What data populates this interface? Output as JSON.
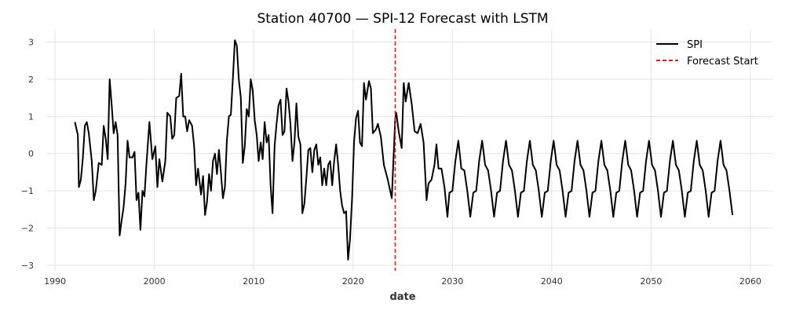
{
  "chart_data": {
    "type": "line",
    "title": "Station 40700 — SPI-12 Forecast with LSTM",
    "xlabel": "date",
    "ylabel": "",
    "xlim": [
      1989.2,
      2062.3
    ],
    "ylim": [
      -3.15,
      3.35
    ],
    "x_ticks": [
      1990,
      2000,
      2010,
      2020,
      2030,
      2040,
      2050,
      2060
    ],
    "y_ticks": [
      -3,
      -2,
      -1,
      0,
      1,
      2,
      3
    ],
    "grid": true,
    "legend": {
      "position": "top-right",
      "entries": [
        {
          "label": "SPI",
          "style": "solid",
          "color": "#000000"
        },
        {
          "label": "Forecast Start",
          "style": "dashed",
          "color": "#e31a1c"
        }
      ]
    },
    "forecast_start_x": 2024.25,
    "series": [
      {
        "name": "SPI",
        "color": "#000000",
        "points": [
          [
            1992.0,
            0.85
          ],
          [
            1992.3,
            0.5
          ],
          [
            1992.4,
            -0.9
          ],
          [
            1992.6,
            -0.7
          ],
          [
            1992.8,
            -0.1
          ],
          [
            1993.0,
            0.75
          ],
          [
            1993.2,
            0.85
          ],
          [
            1993.4,
            0.55
          ],
          [
            1993.7,
            -0.2
          ],
          [
            1993.9,
            -1.25
          ],
          [
            1994.1,
            -1.0
          ],
          [
            1994.4,
            -0.25
          ],
          [
            1994.7,
            -0.3
          ],
          [
            1994.9,
            0.75
          ],
          [
            1995.1,
            0.4
          ],
          [
            1995.3,
            -0.15
          ],
          [
            1995.5,
            2.0
          ],
          [
            1995.7,
            1.3
          ],
          [
            1995.9,
            0.55
          ],
          [
            1996.1,
            0.85
          ],
          [
            1996.3,
            0.5
          ],
          [
            1996.5,
            -2.2
          ],
          [
            1996.7,
            -1.8
          ],
          [
            1996.9,
            -1.45
          ],
          [
            1997.1,
            -0.8
          ],
          [
            1997.3,
            0.35
          ],
          [
            1997.5,
            -0.1
          ],
          [
            1997.8,
            -0.1
          ],
          [
            1998.0,
            0.05
          ],
          [
            1998.2,
            -1.25
          ],
          [
            1998.4,
            -1.05
          ],
          [
            1998.6,
            -2.05
          ],
          [
            1998.8,
            -1.0
          ],
          [
            1999.0,
            -1.15
          ],
          [
            1999.2,
            -0.3
          ],
          [
            1999.5,
            0.85
          ],
          [
            1999.8,
            -0.15
          ],
          [
            2000.1,
            0.2
          ],
          [
            2000.3,
            -0.9
          ],
          [
            2000.5,
            -0.15
          ],
          [
            2000.8,
            -0.75
          ],
          [
            2001.1,
            -0.2
          ],
          [
            2001.3,
            1.1
          ],
          [
            2001.6,
            1.0
          ],
          [
            2001.8,
            0.4
          ],
          [
            2002.0,
            0.5
          ],
          [
            2002.2,
            1.5
          ],
          [
            2002.5,
            1.55
          ],
          [
            2002.7,
            2.15
          ],
          [
            2002.9,
            1.0
          ],
          [
            2003.1,
            1.0
          ],
          [
            2003.3,
            0.6
          ],
          [
            2003.5,
            0.9
          ],
          [
            2003.8,
            0.75
          ],
          [
            2004.0,
            0.2
          ],
          [
            2004.2,
            -0.85
          ],
          [
            2004.4,
            -0.4
          ],
          [
            2004.7,
            -1.1
          ],
          [
            2004.9,
            -0.6
          ],
          [
            2005.1,
            -1.65
          ],
          [
            2005.3,
            -1.3
          ],
          [
            2005.5,
            -0.55
          ],
          [
            2005.7,
            -1.0
          ],
          [
            2005.9,
            -0.2
          ],
          [
            2006.1,
            0.0
          ],
          [
            2006.3,
            -0.55
          ],
          [
            2006.5,
            0.1
          ],
          [
            2006.7,
            -0.5
          ],
          [
            2006.9,
            -1.2
          ],
          [
            2007.1,
            -0.9
          ],
          [
            2007.3,
            0.35
          ],
          [
            2007.5,
            1.0
          ],
          [
            2007.7,
            1.05
          ],
          [
            2007.9,
            2.0
          ],
          [
            2008.1,
            3.05
          ],
          [
            2008.3,
            2.9
          ],
          [
            2008.5,
            2.0
          ],
          [
            2008.7,
            1.5
          ],
          [
            2008.9,
            -0.25
          ],
          [
            2009.1,
            0.2
          ],
          [
            2009.3,
            1.2
          ],
          [
            2009.5,
            1.0
          ],
          [
            2009.7,
            2.0
          ],
          [
            2009.9,
            1.7
          ],
          [
            2010.1,
            0.9
          ],
          [
            2010.3,
            0.5
          ],
          [
            2010.5,
            -0.2
          ],
          [
            2010.7,
            0.3
          ],
          [
            2010.9,
            -0.15
          ],
          [
            2011.1,
            0.85
          ],
          [
            2011.3,
            0.3
          ],
          [
            2011.5,
            0.5
          ],
          [
            2011.7,
            -0.85
          ],
          [
            2011.9,
            -1.6
          ],
          [
            2012.1,
            0.2
          ],
          [
            2012.3,
            0.8
          ],
          [
            2012.5,
            1.3
          ],
          [
            2012.7,
            1.45
          ],
          [
            2012.9,
            0.5
          ],
          [
            2013.1,
            0.6
          ],
          [
            2013.3,
            1.75
          ],
          [
            2013.5,
            1.4
          ],
          [
            2013.7,
            0.8
          ],
          [
            2013.9,
            -0.2
          ],
          [
            2014.1,
            0.3
          ],
          [
            2014.3,
            1.35
          ],
          [
            2014.5,
            0.45
          ],
          [
            2014.7,
            0.25
          ],
          [
            2014.9,
            -1.6
          ],
          [
            2015.1,
            -1.35
          ],
          [
            2015.3,
            -0.65
          ],
          [
            2015.5,
            0.1
          ],
          [
            2015.7,
            0.15
          ],
          [
            2015.9,
            -0.5
          ],
          [
            2016.1,
            0.1
          ],
          [
            2016.3,
            0.25
          ],
          [
            2016.5,
            -0.3
          ],
          [
            2016.7,
            -0.1
          ],
          [
            2016.9,
            -0.85
          ],
          [
            2017.1,
            -0.4
          ],
          [
            2017.3,
            -0.85
          ],
          [
            2017.5,
            -0.3
          ],
          [
            2017.7,
            -0.2
          ],
          [
            2017.9,
            -0.85
          ],
          [
            2018.1,
            -0.2
          ],
          [
            2018.3,
            0.25
          ],
          [
            2018.5,
            -0.3
          ],
          [
            2018.7,
            -1.0
          ],
          [
            2018.9,
            -1.4
          ],
          [
            2019.1,
            -1.6
          ],
          [
            2019.3,
            -1.55
          ],
          [
            2019.5,
            -2.85
          ],
          [
            2019.7,
            -2.3
          ],
          [
            2019.9,
            -1.2
          ],
          [
            2020.1,
            0.3
          ],
          [
            2020.3,
            0.95
          ],
          [
            2020.5,
            1.15
          ],
          [
            2020.7,
            0.3
          ],
          [
            2020.9,
            0.2
          ],
          [
            2021.1,
            1.9
          ],
          [
            2021.3,
            1.45
          ],
          [
            2021.6,
            1.95
          ],
          [
            2021.8,
            1.75
          ],
          [
            2022.0,
            0.55
          ],
          [
            2022.3,
            0.65
          ],
          [
            2022.5,
            0.8
          ],
          [
            2022.8,
            0.45
          ],
          [
            2023.1,
            -0.3
          ],
          [
            2023.5,
            -0.7
          ],
          [
            2023.9,
            -1.2
          ],
          [
            2024.25,
            0.95
          ],
          [
            2024.35,
            1.1
          ],
          [
            2024.6,
            0.6
          ],
          [
            2024.9,
            0.15
          ],
          [
            2025.1,
            1.9
          ],
          [
            2025.3,
            1.4
          ],
          [
            2025.6,
            1.9
          ],
          [
            2025.9,
            1.35
          ],
          [
            2026.2,
            0.6
          ],
          [
            2026.5,
            0.55
          ],
          [
            2026.8,
            0.8
          ],
          [
            2027.1,
            0.3
          ],
          [
            2027.4,
            -1.25
          ],
          [
            2027.6,
            -0.8
          ],
          [
            2027.9,
            -0.7
          ],
          [
            2028.2,
            -0.3
          ],
          [
            2028.4,
            0.25
          ],
          [
            2028.6,
            -0.4
          ],
          [
            2028.9,
            -0.4
          ],
          [
            2029.2,
            -0.9
          ],
          [
            2029.5,
            -1.7
          ],
          [
            2029.7,
            -1.05
          ],
          [
            2030.0,
            -1.0
          ],
          [
            2030.3,
            -0.2
          ],
          [
            2030.6,
            0.35
          ],
          [
            2030.9,
            -0.4
          ],
          [
            2031.2,
            -0.45
          ],
          [
            2031.5,
            -1.0
          ],
          [
            2031.8,
            -1.7
          ],
          [
            2032.1,
            -1.05
          ],
          [
            2032.4,
            -1.0
          ],
          [
            2032.7,
            -0.2
          ],
          [
            2033.0,
            0.35
          ],
          [
            2033.3,
            -0.3
          ],
          [
            2033.6,
            -0.45
          ],
          [
            2033.9,
            -1.0
          ],
          [
            2034.2,
            -1.7
          ],
          [
            2034.5,
            -1.05
          ],
          [
            2034.8,
            -1.0
          ],
          [
            2035.1,
            -0.2
          ],
          [
            2035.4,
            0.35
          ],
          [
            2035.7,
            -0.3
          ],
          [
            2036.0,
            -0.45
          ],
          [
            2036.3,
            -1.0
          ],
          [
            2036.6,
            -1.7
          ],
          [
            2036.9,
            -1.05
          ],
          [
            2037.2,
            -1.0
          ],
          [
            2037.5,
            -0.2
          ],
          [
            2037.8,
            0.35
          ],
          [
            2038.1,
            -0.3
          ],
          [
            2038.4,
            -0.45
          ],
          [
            2038.7,
            -1.0
          ],
          [
            2039.0,
            -1.7
          ],
          [
            2039.3,
            -1.05
          ],
          [
            2039.6,
            -1.0
          ],
          [
            2039.9,
            -0.2
          ],
          [
            2040.2,
            0.35
          ],
          [
            2040.5,
            -0.3
          ],
          [
            2040.8,
            -0.45
          ],
          [
            2041.1,
            -1.0
          ],
          [
            2041.4,
            -1.7
          ],
          [
            2041.7,
            -1.05
          ],
          [
            2042.0,
            -1.0
          ],
          [
            2042.3,
            -0.2
          ],
          [
            2042.6,
            0.35
          ],
          [
            2042.9,
            -0.3
          ],
          [
            2043.2,
            -0.45
          ],
          [
            2043.5,
            -1.0
          ],
          [
            2043.8,
            -1.7
          ],
          [
            2044.1,
            -1.05
          ],
          [
            2044.4,
            -1.0
          ],
          [
            2044.7,
            -0.2
          ],
          [
            2045.0,
            0.35
          ],
          [
            2045.3,
            -0.3
          ],
          [
            2045.6,
            -0.45
          ],
          [
            2045.9,
            -1.0
          ],
          [
            2046.2,
            -1.7
          ],
          [
            2046.5,
            -1.05
          ],
          [
            2046.8,
            -1.0
          ],
          [
            2047.1,
            -0.2
          ],
          [
            2047.4,
            0.35
          ],
          [
            2047.7,
            -0.3
          ],
          [
            2048.0,
            -0.45
          ],
          [
            2048.3,
            -1.0
          ],
          [
            2048.6,
            -1.7
          ],
          [
            2048.9,
            -1.05
          ],
          [
            2049.2,
            -1.0
          ],
          [
            2049.5,
            -0.2
          ],
          [
            2049.8,
            0.35
          ],
          [
            2050.1,
            -0.3
          ],
          [
            2050.4,
            -0.45
          ],
          [
            2050.7,
            -1.0
          ],
          [
            2051.0,
            -1.7
          ],
          [
            2051.3,
            -1.05
          ],
          [
            2051.6,
            -1.0
          ],
          [
            2051.9,
            -0.2
          ],
          [
            2052.2,
            0.35
          ],
          [
            2052.5,
            -0.3
          ],
          [
            2052.8,
            -0.45
          ],
          [
            2053.1,
            -1.0
          ],
          [
            2053.4,
            -1.7
          ],
          [
            2053.7,
            -1.05
          ],
          [
            2054.0,
            -1.0
          ],
          [
            2054.3,
            -0.2
          ],
          [
            2054.6,
            0.35
          ],
          [
            2054.9,
            -0.3
          ],
          [
            2055.2,
            -0.45
          ],
          [
            2055.5,
            -1.0
          ],
          [
            2055.8,
            -1.7
          ],
          [
            2056.1,
            -1.05
          ],
          [
            2056.4,
            -1.0
          ],
          [
            2056.7,
            -0.2
          ],
          [
            2057.0,
            0.35
          ],
          [
            2057.3,
            -0.3
          ],
          [
            2057.6,
            -0.45
          ],
          [
            2057.9,
            -1.0
          ],
          [
            2058.2,
            -1.65
          ]
        ]
      }
    ]
  }
}
